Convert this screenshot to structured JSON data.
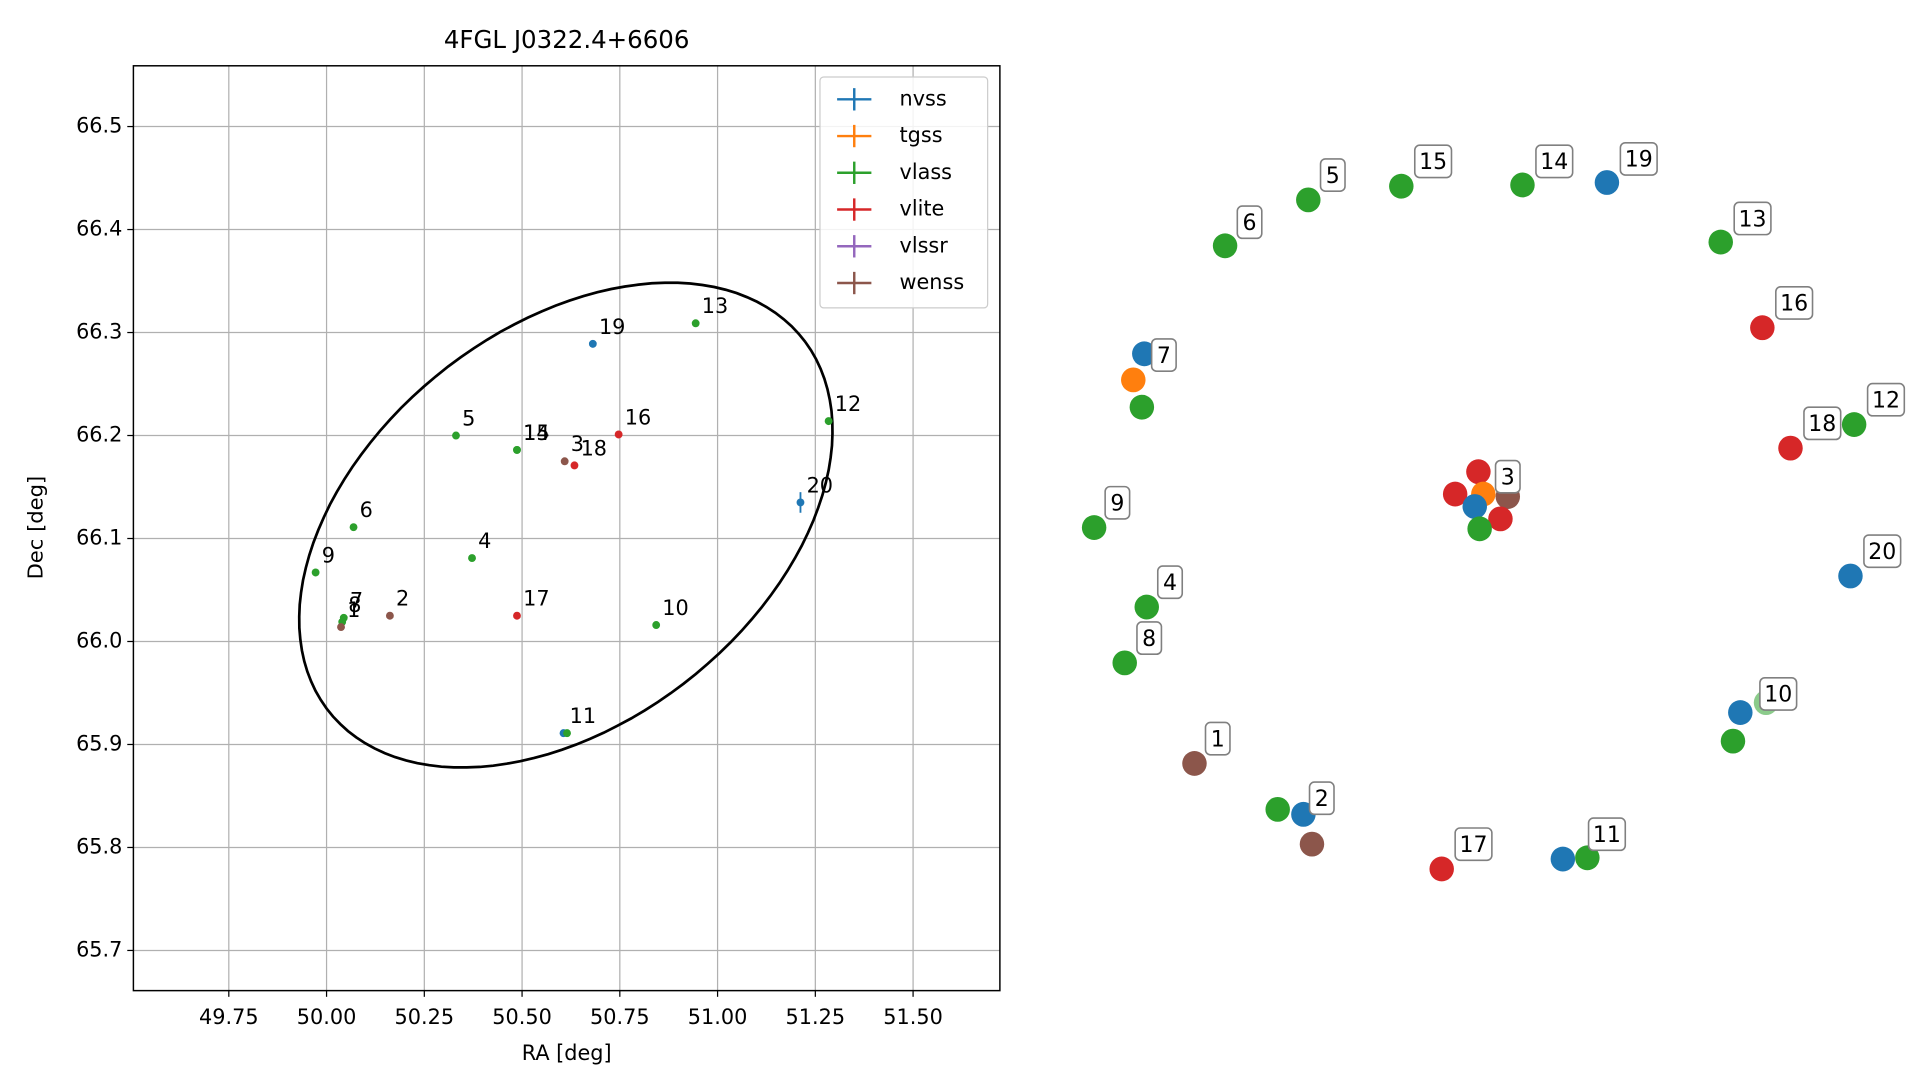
{
  "chart_data": {
    "type": "scatter",
    "title": "4FGL J0322.4+6606",
    "x_label": "RA [deg]",
    "y_label": "Dec [deg]",
    "xlim": [
      49.506,
      51.722
    ],
    "xticks": [
      49.75,
      {
        "value": 50.0,
        "label": "50.00"
      },
      50.25,
      {
        "value": 50.5,
        "label": "50.50"
      },
      50.75,
      {
        "value": 51.0,
        "label": "51.00"
      },
      51.25,
      {
        "value": 51.5,
        "label": "51.50"
      }
    ],
    "ylim": [
      65.661,
      66.559
    ],
    "yticks": [
      65.7,
      65.8,
      65.9,
      {
        "value": 66.0,
        "label": "66.0"
      },
      66.1,
      66.2,
      66.3,
      66.4,
      66.5
    ],
    "grid": true,
    "legend": "upper right",
    "ellipse": {
      "center": [
        50.612,
        66.113
      ],
      "axis1": [
        0.612,
        0.178
      ],
      "axis2": [
        0.301,
        -0.154
      ]
    },
    "series": [
      {
        "name": "nvss",
        "color": "#1f77b4",
        "x": [
          50.681,
          51.212,
          50.606
        ],
        "y": [
          66.289,
          66.135,
          65.911
        ],
        "yerr": [
          0.002,
          0.01,
          0.002
        ],
        "labels": [
          "19",
          "20",
          "11"
        ]
      },
      {
        "name": "tgss",
        "color": "#ff7f0e",
        "x": [],
        "y": [],
        "labels": []
      },
      {
        "name": "vlass",
        "color": "#2ca02c",
        "x": [
          50.944,
          51.284,
          50.331,
          50.487,
          50.487,
          50.069,
          50.372,
          49.972,
          50.044,
          50.04,
          50.843,
          50.615
        ],
        "y": [
          66.309,
          66.214,
          66.2,
          66.186,
          66.186,
          66.111,
          66.081,
          66.067,
          66.023,
          66.019,
          66.016,
          65.911
        ],
        "labels": [
          "13",
          "12",
          "5",
          "15",
          "14",
          "6",
          "4",
          "9",
          "7",
          "8",
          "10",
          null
        ]
      },
      {
        "name": "vlite",
        "color": "#d62728",
        "x": [
          50.747,
          50.634,
          50.487
        ],
        "y": [
          66.201,
          66.171,
          66.025
        ],
        "labels": [
          "16",
          "18",
          "17"
        ]
      },
      {
        "name": "vlssr",
        "color": "#9467bd",
        "x": [],
        "y": [],
        "labels": []
      },
      {
        "name": "wenss",
        "color": "#8c564b",
        "x": [
          50.609,
          50.037,
          50.162
        ],
        "y": [
          66.175,
          66.014,
          66.025
        ],
        "labels": [
          "3",
          "1",
          "2"
        ]
      }
    ]
  },
  "overview": [
    {
      "label": "5",
      "surveys": [
        "vlass"
      ]
    },
    {
      "label": "15",
      "surveys": [
        "vlass"
      ]
    },
    {
      "label": "14",
      "surveys": [
        "vlass"
      ]
    },
    {
      "label": "19",
      "surveys": [
        "nvss"
      ]
    },
    {
      "label": "6",
      "surveys": [
        "vlass"
      ]
    },
    {
      "label": "13",
      "surveys": [
        "vlass"
      ]
    },
    {
      "label": "16",
      "surveys": [
        "vlite"
      ]
    },
    {
      "label": "7",
      "surveys": [
        "nvss",
        "tgss",
        "vlass"
      ]
    },
    {
      "label": "12",
      "surveys": [
        "vlass"
      ]
    },
    {
      "label": "18",
      "surveys": [
        "vlite"
      ]
    },
    {
      "label": "3",
      "surveys": [
        "vlite",
        "vlite",
        "tgss",
        "wenss",
        "nvss",
        "vlite",
        "vlass"
      ]
    },
    {
      "label": "9",
      "surveys": [
        "vlass"
      ]
    },
    {
      "label": "20",
      "surveys": [
        "nvss"
      ]
    },
    {
      "label": "4",
      "surveys": [
        "vlass"
      ]
    },
    {
      "label": "8",
      "surveys": [
        "vlass"
      ]
    },
    {
      "label": "10",
      "surveys": [
        "nvss",
        "vlass",
        "vlass"
      ]
    },
    {
      "label": "1",
      "surveys": [
        "wenss"
      ]
    },
    {
      "label": "2",
      "surveys": [
        "vlass",
        "nvss",
        "wenss"
      ]
    },
    {
      "label": "17",
      "surveys": [
        "vlite"
      ]
    },
    {
      "label": "11",
      "surveys": [
        "nvss",
        "vlass"
      ]
    }
  ]
}
